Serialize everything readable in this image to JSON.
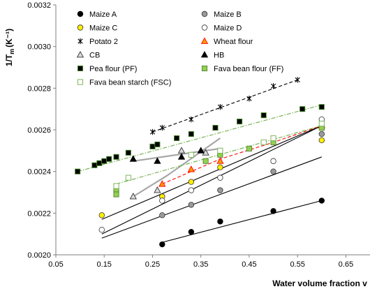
{
  "chart_data": {
    "type": "scatter",
    "title": "",
    "xlabel": "Water volume fraction v",
    "ylabel": "1/T",
    "ylabel_sub": "m",
    "ylabel_unit": "(K⁻¹)",
    "xlim": [
      0.05,
      0.7
    ],
    "ylim": [
      0.002,
      0.0032
    ],
    "x_ticks": [
      "0.05",
      "0.15",
      "0.25",
      "0.35",
      "0.45",
      "0.55",
      "0.65"
    ],
    "y_ticks": [
      "0.0020",
      "0.0022",
      "0.0024",
      "0.0026",
      "0.0028",
      "0.0030",
      "0.0032"
    ],
    "grid": false,
    "legend_position": "top-left, two columns",
    "series": [
      {
        "name": "Maize A",
        "marker": "circle",
        "fill": "#000000",
        "stroke": "#000000",
        "x": [
          0.27,
          0.33,
          0.39,
          0.5,
          0.6
        ],
        "y": [
          0.00205,
          0.00211,
          0.00216,
          0.00221,
          0.00226
        ]
      },
      {
        "name": "Maize B",
        "marker": "circle",
        "fill": "#9a9a9a",
        "stroke": "#333333",
        "x": [
          0.27,
          0.33,
          0.39,
          0.5,
          0.6
        ],
        "y": [
          0.00219,
          0.00224,
          0.00231,
          0.0024,
          0.00258
        ]
      },
      {
        "name": "Maize C",
        "marker": "circle",
        "fill": "#ffee00",
        "stroke": "#333333",
        "x": [
          0.145,
          0.27,
          0.33,
          0.39,
          0.6
        ],
        "y": [
          0.00219,
          0.00228,
          0.00235,
          0.00242,
          0.00255
        ]
      },
      {
        "name": "Maize D",
        "marker": "circle",
        "fill": "#ffffff",
        "stroke": "#333333",
        "x": [
          0.145,
          0.27,
          0.33,
          0.39,
          0.5,
          0.6
        ],
        "y": [
          0.00212,
          0.00226,
          0.00231,
          0.00237,
          0.00245,
          0.00265
        ]
      },
      {
        "name": "Potato 2",
        "marker": "star",
        "fill": "none",
        "stroke": "#000000",
        "x": [
          0.25,
          0.27,
          0.33,
          0.39,
          0.45,
          0.5,
          0.55
        ],
        "y": [
          0.00259,
          0.00261,
          0.00265,
          0.00271,
          0.00275,
          0.00281,
          0.00284
        ]
      },
      {
        "name": "Wheat flour",
        "marker": "triangle",
        "fill": "#ff9900",
        "stroke": "#ff0000",
        "x": [
          0.27,
          0.33,
          0.39,
          0.6
        ],
        "y": [
          0.00234,
          0.00241,
          0.00245,
          0.00262
        ]
      },
      {
        "name": "CB",
        "marker": "triangle",
        "fill": "#d9d9d9",
        "stroke": "#333333",
        "x": [
          0.21,
          0.26,
          0.31,
          0.36
        ],
        "y": [
          0.00228,
          0.00231,
          0.0025,
          0.00249
        ]
      },
      {
        "name": "HB",
        "marker": "triangle",
        "fill": "#000000",
        "stroke": "#000000",
        "x": [
          0.21,
          0.26,
          0.31,
          0.35
        ],
        "y": [
          0.00246,
          0.00245,
          0.00247,
          0.0025
        ]
      },
      {
        "name": "Pea flour (PF)",
        "marker": "square",
        "fill": "#000000",
        "stroke": "#4a8f2a",
        "x": [
          0.095,
          0.13,
          0.14,
          0.15,
          0.16,
          0.175,
          0.2,
          0.25,
          0.26,
          0.3,
          0.33,
          0.38,
          0.43,
          0.48,
          0.56,
          0.6
        ],
        "y": [
          0.0024,
          0.00243,
          0.00244,
          0.00245,
          0.00246,
          0.00247,
          0.00249,
          0.00252,
          0.00253,
          0.00256,
          0.00258,
          0.00261,
          0.00264,
          0.00267,
          0.0027,
          0.00271
        ]
      },
      {
        "name": "Fava bean flour (FF)",
        "marker": "square",
        "fill": "#92d050",
        "stroke": "#548235",
        "x": [
          0.175,
          0.175,
          0.36,
          0.39,
          0.45,
          0.5,
          0.6
        ],
        "y": [
          0.00231,
          0.00229,
          0.00245,
          0.00248,
          0.00251,
          0.00254,
          0.00261
        ]
      },
      {
        "name": "Fava bean starch (FSC)",
        "marker": "square",
        "fill": "#ffffff",
        "stroke": "#70ad47",
        "x": [
          0.175,
          0.2,
          0.33,
          0.39,
          0.48,
          0.5,
          0.6
        ],
        "y": [
          0.00233,
          0.00237,
          0.00248,
          0.0025,
          0.00254,
          0.00256,
          0.00263
        ]
      }
    ],
    "trendlines": [
      {
        "series": "Maize A",
        "style": "solid",
        "color": "#000000",
        "x": [
          0.27,
          0.6
        ],
        "y": [
          0.00206,
          0.00226
        ]
      },
      {
        "series": "Maize B",
        "style": "solid",
        "color": "#000000",
        "x": [
          0.145,
          0.6
        ],
        "y": [
          0.0021,
          0.00262
        ]
      },
      {
        "series": "Maize C",
        "style": "solid",
        "color": "#000000",
        "x": [
          0.145,
          0.6
        ],
        "y": [
          0.00208,
          0.00247
        ]
      },
      {
        "series": "Maize D",
        "style": "solid",
        "color": "#000000",
        "x": [
          0.145,
          0.6
        ],
        "y": [
          0.00217,
          0.00262
        ]
      },
      {
        "series": "Potato 2",
        "style": "dashed",
        "color": "#000000",
        "x": [
          0.25,
          0.55
        ],
        "y": [
          0.00259,
          0.00284
        ]
      },
      {
        "series": "Wheat flour",
        "style": "dashed",
        "color": "#ff0000",
        "x": [
          0.27,
          0.33,
          0.39,
          0.5,
          0.6
        ],
        "y": [
          0.00234,
          0.0024,
          0.00246,
          0.00254,
          0.00262
        ]
      },
      {
        "series": "CB",
        "style": "solid",
        "color": "#a6a6a6",
        "x": [
          0.21,
          0.28,
          0.39
        ],
        "y": [
          0.00228,
          0.00238,
          0.00256
        ]
      },
      {
        "series": "HB",
        "style": "solid",
        "color": "#a6a6a6",
        "x": [
          0.21,
          0.39
        ],
        "y": [
          0.00245,
          0.00251
        ]
      },
      {
        "series": "Pea flour (PF)",
        "style": "dash-dot",
        "color": "#70ad47",
        "x": [
          0.095,
          0.6
        ],
        "y": [
          0.0024,
          0.00272
        ]
      },
      {
        "series": "Fava bean flour (FF)",
        "style": "dash-dot",
        "color": "#70ad47",
        "x": [
          0.175,
          0.6
        ],
        "y": [
          0.00234,
          0.00262
        ]
      }
    ]
  }
}
